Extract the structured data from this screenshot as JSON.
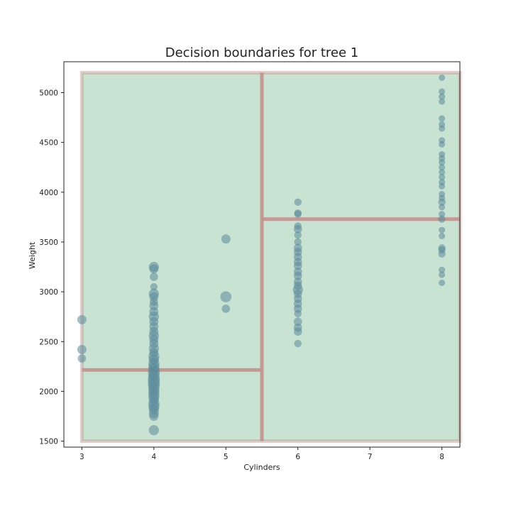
{
  "chart_data": {
    "type": "scatter",
    "title": "Decision boundaries for tree 1",
    "xlabel": "Cylinders",
    "ylabel": "Weight",
    "xlim": [
      2.75,
      8.25
    ],
    "ylim": [
      1440,
      5310
    ],
    "xticks": [
      3,
      4,
      5,
      6,
      7,
      8
    ],
    "yticks": [
      1500,
      2000,
      2500,
      3000,
      3500,
      4000,
      4500,
      5000
    ],
    "grid": false,
    "colors": {
      "region_fill": "#c9e3d3",
      "boundary": "#c4938f",
      "point": "#5b8b9a",
      "axes": "#222222"
    },
    "region": {
      "x": [
        3,
        8.25
      ],
      "y": [
        1500,
        5200
      ]
    },
    "boundaries": [
      {
        "x": [
          5.5,
          5.5
        ],
        "y": [
          1500,
          5200
        ]
      },
      {
        "x": [
          3,
          5.5
        ],
        "y": [
          2215,
          2215
        ]
      },
      {
        "x": [
          5.5,
          8.25
        ],
        "y": [
          3730,
          3730
        ]
      }
    ],
    "points": [
      {
        "x": 3,
        "y": 2720,
        "s": 1.0
      },
      {
        "x": 3,
        "y": 2420,
        "s": 1.0
      },
      {
        "x": 3,
        "y": 2330,
        "s": 0.9
      },
      {
        "x": 4,
        "y": 3250,
        "s": 1.1
      },
      {
        "x": 4,
        "y": 3230,
        "s": 1.0
      },
      {
        "x": 4,
        "y": 3150,
        "s": 0.9
      },
      {
        "x": 4,
        "y": 3050,
        "s": 0.8
      },
      {
        "x": 4,
        "y": 2980,
        "s": 1.1
      },
      {
        "x": 4,
        "y": 2950,
        "s": 1.0
      },
      {
        "x": 4,
        "y": 2900,
        "s": 0.9
      },
      {
        "x": 4,
        "y": 2860,
        "s": 1.0
      },
      {
        "x": 4,
        "y": 2800,
        "s": 1.0
      },
      {
        "x": 4,
        "y": 2750,
        "s": 1.1
      },
      {
        "x": 4,
        "y": 2700,
        "s": 1.0
      },
      {
        "x": 4,
        "y": 2650,
        "s": 1.0
      },
      {
        "x": 4,
        "y": 2600,
        "s": 1.0
      },
      {
        "x": 4,
        "y": 2560,
        "s": 1.1
      },
      {
        "x": 4,
        "y": 2520,
        "s": 1.0
      },
      {
        "x": 4,
        "y": 2480,
        "s": 1.0
      },
      {
        "x": 4,
        "y": 2430,
        "s": 1.1
      },
      {
        "x": 4,
        "y": 2390,
        "s": 1.0
      },
      {
        "x": 4,
        "y": 2350,
        "s": 1.2
      },
      {
        "x": 4,
        "y": 2320,
        "s": 1.1
      },
      {
        "x": 4,
        "y": 2280,
        "s": 1.2
      },
      {
        "x": 4,
        "y": 2250,
        "s": 1.2
      },
      {
        "x": 4,
        "y": 2220,
        "s": 1.2
      },
      {
        "x": 4,
        "y": 2190,
        "s": 1.3
      },
      {
        "x": 4,
        "y": 2160,
        "s": 1.2
      },
      {
        "x": 4,
        "y": 2130,
        "s": 1.3
      },
      {
        "x": 4,
        "y": 2100,
        "s": 1.3
      },
      {
        "x": 4,
        "y": 2070,
        "s": 1.3
      },
      {
        "x": 4,
        "y": 2040,
        "s": 1.2
      },
      {
        "x": 4,
        "y": 2010,
        "s": 1.2
      },
      {
        "x": 4,
        "y": 1980,
        "s": 1.2
      },
      {
        "x": 4,
        "y": 1950,
        "s": 1.2
      },
      {
        "x": 4,
        "y": 1920,
        "s": 1.1
      },
      {
        "x": 4,
        "y": 1880,
        "s": 1.2
      },
      {
        "x": 4,
        "y": 1850,
        "s": 1.2
      },
      {
        "x": 4,
        "y": 1820,
        "s": 1.1
      },
      {
        "x": 4,
        "y": 1780,
        "s": 1.1
      },
      {
        "x": 4,
        "y": 1750,
        "s": 1.0
      },
      {
        "x": 4,
        "y": 1610,
        "s": 1.1
      },
      {
        "x": 5,
        "y": 3530,
        "s": 1.0
      },
      {
        "x": 5,
        "y": 2950,
        "s": 1.2
      },
      {
        "x": 5,
        "y": 2830,
        "s": 0.9
      },
      {
        "x": 6,
        "y": 3900,
        "s": 0.8
      },
      {
        "x": 6,
        "y": 3790,
        "s": 0.8
      },
      {
        "x": 6,
        "y": 3780,
        "s": 0.8
      },
      {
        "x": 6,
        "y": 3660,
        "s": 0.8
      },
      {
        "x": 6,
        "y": 3630,
        "s": 0.9
      },
      {
        "x": 6,
        "y": 3570,
        "s": 0.8
      },
      {
        "x": 6,
        "y": 3500,
        "s": 0.8
      },
      {
        "x": 6,
        "y": 3440,
        "s": 0.9
      },
      {
        "x": 6,
        "y": 3400,
        "s": 0.9
      },
      {
        "x": 6,
        "y": 3350,
        "s": 0.9
      },
      {
        "x": 6,
        "y": 3300,
        "s": 0.9
      },
      {
        "x": 6,
        "y": 3260,
        "s": 0.9
      },
      {
        "x": 6,
        "y": 3200,
        "s": 0.9
      },
      {
        "x": 6,
        "y": 3160,
        "s": 0.9
      },
      {
        "x": 6,
        "y": 3100,
        "s": 0.9
      },
      {
        "x": 6,
        "y": 3060,
        "s": 0.9
      },
      {
        "x": 6,
        "y": 3020,
        "s": 1.1
      },
      {
        "x": 6,
        "y": 2980,
        "s": 0.9
      },
      {
        "x": 6,
        "y": 2930,
        "s": 0.9
      },
      {
        "x": 6,
        "y": 2880,
        "s": 0.9
      },
      {
        "x": 6,
        "y": 2830,
        "s": 0.9
      },
      {
        "x": 6,
        "y": 2780,
        "s": 0.8
      },
      {
        "x": 6,
        "y": 2700,
        "s": 0.9
      },
      {
        "x": 6,
        "y": 2640,
        "s": 0.9
      },
      {
        "x": 6,
        "y": 2600,
        "s": 0.9
      },
      {
        "x": 6,
        "y": 2480,
        "s": 0.8
      },
      {
        "x": 8,
        "y": 5150,
        "s": 0.7
      },
      {
        "x": 8,
        "y": 5010,
        "s": 0.7
      },
      {
        "x": 8,
        "y": 4960,
        "s": 0.7
      },
      {
        "x": 8,
        "y": 4910,
        "s": 0.7
      },
      {
        "x": 8,
        "y": 4740,
        "s": 0.7
      },
      {
        "x": 8,
        "y": 4680,
        "s": 0.7
      },
      {
        "x": 8,
        "y": 4640,
        "s": 0.7
      },
      {
        "x": 8,
        "y": 4520,
        "s": 0.7
      },
      {
        "x": 8,
        "y": 4480,
        "s": 0.7
      },
      {
        "x": 8,
        "y": 4380,
        "s": 0.7
      },
      {
        "x": 8,
        "y": 4340,
        "s": 0.7
      },
      {
        "x": 8,
        "y": 4300,
        "s": 0.7
      },
      {
        "x": 8,
        "y": 4250,
        "s": 0.7
      },
      {
        "x": 8,
        "y": 4200,
        "s": 0.7
      },
      {
        "x": 8,
        "y": 4150,
        "s": 0.7
      },
      {
        "x": 8,
        "y": 4100,
        "s": 0.7
      },
      {
        "x": 8,
        "y": 4060,
        "s": 0.7
      },
      {
        "x": 8,
        "y": 3980,
        "s": 0.7
      },
      {
        "x": 8,
        "y": 3940,
        "s": 0.7
      },
      {
        "x": 8,
        "y": 3900,
        "s": 0.8
      },
      {
        "x": 8,
        "y": 3850,
        "s": 0.7
      },
      {
        "x": 8,
        "y": 3780,
        "s": 0.7
      },
      {
        "x": 8,
        "y": 3730,
        "s": 0.8
      },
      {
        "x": 8,
        "y": 3620,
        "s": 0.7
      },
      {
        "x": 8,
        "y": 3560,
        "s": 0.7
      },
      {
        "x": 8,
        "y": 3440,
        "s": 0.8
      },
      {
        "x": 8,
        "y": 3420,
        "s": 0.8
      },
      {
        "x": 8,
        "y": 3380,
        "s": 0.8
      },
      {
        "x": 8,
        "y": 3220,
        "s": 0.7
      },
      {
        "x": 8,
        "y": 3170,
        "s": 0.7
      },
      {
        "x": 8,
        "y": 3090,
        "s": 0.7
      }
    ]
  }
}
